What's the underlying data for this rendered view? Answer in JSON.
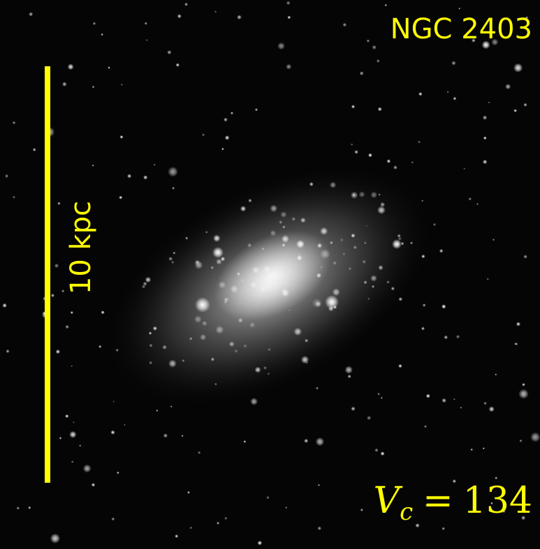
{
  "image": {
    "title": "NGC 2403",
    "scale_bar": {
      "label": "10 kpc"
    },
    "velocity": {
      "symbol": "V",
      "subscript": "c",
      "operator": "=",
      "value": 134
    }
  }
}
